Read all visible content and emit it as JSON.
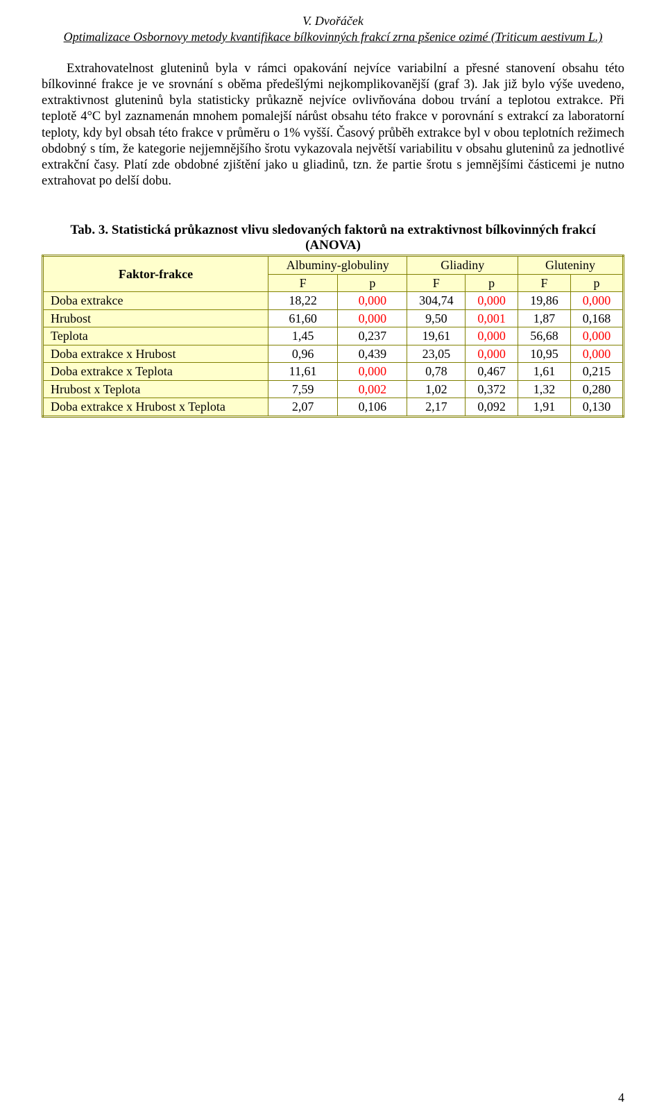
{
  "header": {
    "author": "V. Dvořáček",
    "title": "Optimalizace Osbornovy metody kvantifikace bílkovinných frakcí zrna pšenice ozimé (Triticum aestivum L.)"
  },
  "paragraph": "Extrahovatelnost gluteninů byla v rámci opakování nejvíce variabilní a přesné stanovení obsahu této bílkovinné frakce je ve srovnání s oběma předešlými nejkomplikovanější (graf 3). Jak již bylo výše uvedeno, extraktivnost gluteninů byla statisticky průkazně nejvíce ovlivňována dobou trvání a teplotou extrakce. Při teplotě 4°C byl zaznamenán mnohem pomalejší nárůst obsahu této frakce v porovnání s extrakcí za laboratorní teploty, kdy byl obsah této frakce v průměru o 1% vyšší. Časový průběh extrakce byl v obou teplotních režimech obdobný s tím, že kategorie nejjemnějšího šrotu vykazovala největší variabilitu v obsahu gluteninů za jednotlivé extrakční časy. Platí zde obdobné zjištění jako u gliadinů, tzn. že partie šrotu s jemnějšími částicemi je nutno extrahovat po delší dobu.",
  "table": {
    "title": "Tab. 3. Statistická průkaznost vlivu sledovaných faktorů na extraktivnost bílkovinných frakcí (ANOVA)",
    "header_groups": [
      "Albuminy-globuliny",
      "Gliadiny",
      "Gluteniny"
    ],
    "factor_label": "Faktor-frakce",
    "sub_headers": [
      "F",
      "p",
      "F",
      "p",
      "F",
      "p"
    ],
    "rows": [
      {
        "label": "Doba extrakce",
        "cells": [
          {
            "v": "18,22",
            "red": false
          },
          {
            "v": "0,000",
            "red": true
          },
          {
            "v": "304,74",
            "red": false
          },
          {
            "v": "0,000",
            "red": true
          },
          {
            "v": "19,86",
            "red": false
          },
          {
            "v": "0,000",
            "red": true
          }
        ]
      },
      {
        "label": "Hrubost",
        "cells": [
          {
            "v": "61,60",
            "red": false
          },
          {
            "v": "0,000",
            "red": true
          },
          {
            "v": "9,50",
            "red": false
          },
          {
            "v": "0,001",
            "red": true
          },
          {
            "v": "1,87",
            "red": false
          },
          {
            "v": "0,168",
            "red": false
          }
        ]
      },
      {
        "label": "Teplota",
        "cells": [
          {
            "v": "1,45",
            "red": false
          },
          {
            "v": "0,237",
            "red": false
          },
          {
            "v": "19,61",
            "red": false
          },
          {
            "v": "0,000",
            "red": true
          },
          {
            "v": "56,68",
            "red": false
          },
          {
            "v": "0,000",
            "red": true
          }
        ]
      },
      {
        "label": "Doba extrakce x Hrubost",
        "cells": [
          {
            "v": "0,96",
            "red": false
          },
          {
            "v": "0,439",
            "red": false
          },
          {
            "v": "23,05",
            "red": false
          },
          {
            "v": "0,000",
            "red": true
          },
          {
            "v": "10,95",
            "red": false
          },
          {
            "v": "0,000",
            "red": true
          }
        ]
      },
      {
        "label": "Doba extrakce x Teplota",
        "cells": [
          {
            "v": "11,61",
            "red": false
          },
          {
            "v": "0,000",
            "red": true
          },
          {
            "v": "0,78",
            "red": false
          },
          {
            "v": "0,467",
            "red": false
          },
          {
            "v": "1,61",
            "red": false
          },
          {
            "v": "0,215",
            "red": false
          }
        ]
      },
      {
        "label": "Hrubost x Teplota",
        "cells": [
          {
            "v": "7,59",
            "red": false
          },
          {
            "v": "0,002",
            "red": true
          },
          {
            "v": "1,02",
            "red": false
          },
          {
            "v": "0,372",
            "red": false
          },
          {
            "v": "1,32",
            "red": false
          },
          {
            "v": "0,280",
            "red": false
          }
        ]
      },
      {
        "label": "Doba extrakce x Hrubost x Teplota",
        "cells": [
          {
            "v": "2,07",
            "red": false
          },
          {
            "v": "0,106",
            "red": false
          },
          {
            "v": "2,17",
            "red": false
          },
          {
            "v": "0,092",
            "red": false
          },
          {
            "v": "1,91",
            "red": false
          },
          {
            "v": "0,130",
            "red": false
          }
        ]
      }
    ],
    "colors": {
      "border": "#808000",
      "header_bg": "#ffffcc",
      "red_text": "#ff0000",
      "black_text": "#000000"
    }
  },
  "page_number": "4"
}
